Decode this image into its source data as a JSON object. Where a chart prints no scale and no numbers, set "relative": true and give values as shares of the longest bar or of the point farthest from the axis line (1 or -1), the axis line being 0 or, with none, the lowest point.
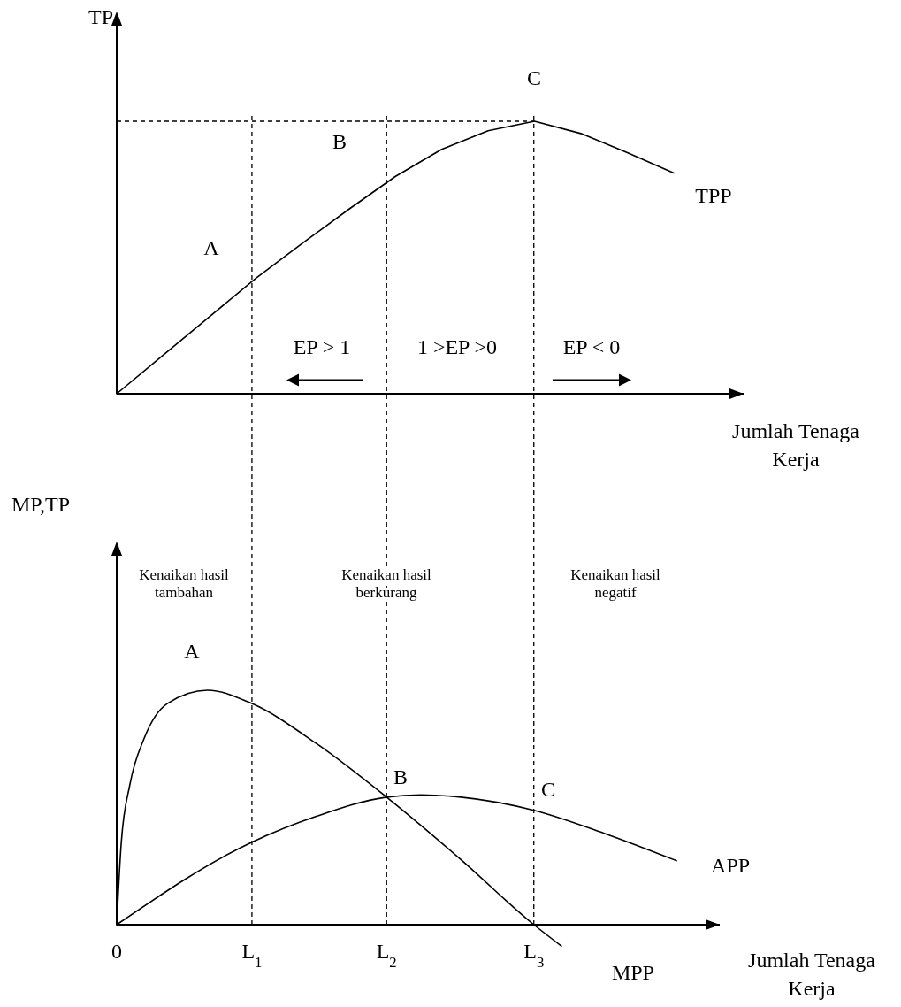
{
  "chart_data": [
    {
      "type": "line",
      "relative": true,
      "ylabel": "TP",
      "xlabel": "Jumlah Tenaga Kerja",
      "marker": "none",
      "categories": [
        null,
        null,
        null,
        null,
        null,
        null,
        null,
        null,
        null,
        null,
        null,
        null,
        null
      ],
      "series": [
        {
          "name": "TPP",
          "color": "#000000",
          "line_style": "solid",
          "values": [
            0,
            0.142,
            0.283,
            0.424,
            0.552,
            0.677,
            0.797,
            0.897,
            0.965,
            1,
            0.955,
            0.885,
            0.81
          ]
        }
      ],
      "ref_lines": [
        {
          "axis": "y",
          "value": 1,
          "color": "#000000",
          "line_style": "dashed"
        }
      ],
      "annotations": [
        "A",
        "B",
        "C",
        "EP > 1",
        "1 >EP >0",
        "EP < 0"
      ]
    },
    {
      "type": "line",
      "relative": true,
      "ylabel": "MP,TP",
      "xlabel": "Jumlah Tenaga Kerja",
      "xlim": [
        0,
        4.46
      ],
      "xticks": [
        0,
        {
          "value": 1,
          "label": "L$_{1}$"
        },
        {
          "value": 1.996,
          "label": "L$_{2}$"
        },
        {
          "value": 3.085,
          "label": "L$_{3}$"
        }
      ],
      "tick_labels": "x",
      "marker": "none",
      "series": [
        {
          "name": "MPP",
          "color": "#000000",
          "line_style": "solid",
          "x": [
            0,
            0.034,
            0.098,
            0.204,
            0.374,
            0.672,
            1,
            1.481,
            1.996,
            2.545,
            3.085,
            3.289
          ],
          "values": [
            0,
            0.352,
            0.599,
            0.796,
            0.943,
            1,
            0.943,
            0.771,
            0.544,
            0.278,
            0,
            -0.091
          ]
        },
        {
          "name": "APP",
          "color": "#000000",
          "line_style": "solid",
          "x": [
            0,
            1,
            1.481,
            1.996,
            2.247,
            2.545,
            3.085,
            3.609,
            4.14
          ],
          "values": [
            0,
            0.352,
            0.463,
            0.544,
            0.554,
            0.544,
            0.488,
            0.389,
            0.273
          ]
        }
      ],
      "ref_lines": [
        {
          "axis": "x",
          "value": 1,
          "color": "#000000",
          "line_style": "dashed"
        },
        {
          "axis": "x",
          "value": 1.996,
          "color": "#000000",
          "line_style": "dashed"
        },
        {
          "axis": "x",
          "value": 3.085,
          "color": "#000000",
          "line_style": "dashed"
        }
      ],
      "annotations": [
        "Kenaikan hasil tambahan",
        "Kenaikan hasil berkurang",
        "Kenaikan hasil negatif",
        "A",
        "B",
        "C"
      ]
    }
  ]
}
